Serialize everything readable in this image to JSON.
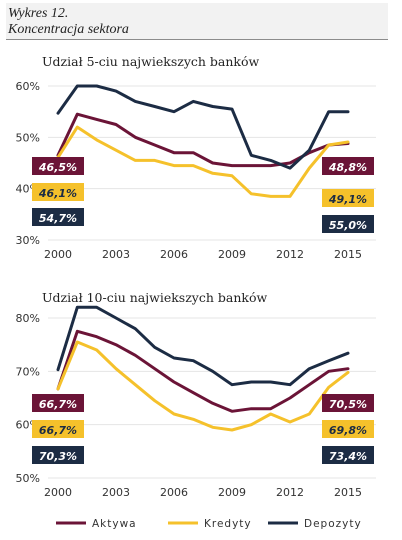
{
  "header": {
    "line1": "Wykres 12.",
    "line2": "Koncentracja sektora"
  },
  "colors": {
    "aktywa": "#6b1437",
    "kredyty": "#f5c12b",
    "depozyty": "#1c2c44"
  },
  "legend": [
    {
      "key": "aktywa",
      "label": "Aktywa"
    },
    {
      "key": "kredyty",
      "label": "Kredyty"
    },
    {
      "key": "depozyty",
      "label": "Depozyty"
    }
  ],
  "chart_data": [
    {
      "type": "line",
      "title": "Udział 5-ciu najwiekszych banków",
      "x": [
        2000,
        2001,
        2002,
        2003,
        2004,
        2005,
        2006,
        2007,
        2008,
        2009,
        2010,
        2011,
        2012,
        2013,
        2014,
        2015
      ],
      "x_ticks": [
        "2000",
        "2003",
        "2006",
        "2009",
        "2012",
        "2015"
      ],
      "y_ticks": [
        "30%",
        "40%",
        "50%",
        "60%"
      ],
      "ylim": [
        30,
        62
      ],
      "series": [
        {
          "key": "aktywa",
          "name": "Aktywa",
          "values": [
            46.5,
            54.5,
            53.5,
            52.5,
            50.0,
            48.5,
            47.0,
            47.0,
            45.0,
            44.5,
            44.5,
            44.5,
            45.0,
            47.0,
            48.5,
            48.8
          ]
        },
        {
          "key": "kredyty",
          "name": "Kredyty",
          "values": [
            46.1,
            52.0,
            49.5,
            47.5,
            45.5,
            45.5,
            44.5,
            44.5,
            43.0,
            42.5,
            39.0,
            38.5,
            38.5,
            44.0,
            48.5,
            49.1
          ]
        },
        {
          "key": "depozyty",
          "name": "Depozyty",
          "values": [
            54.7,
            60.0,
            60.0,
            59.0,
            57.0,
            56.0,
            55.0,
            57.0,
            56.0,
            55.5,
            46.5,
            45.5,
            44.0,
            47.5,
            55.0,
            55.0
          ]
        }
      ],
      "labels_left": [
        {
          "key": "aktywa",
          "text": "46,5%"
        },
        {
          "key": "kredyty",
          "text": "46,1%"
        },
        {
          "key": "depozyty",
          "text": "54,7%"
        }
      ],
      "labels_right": [
        {
          "key": "aktywa",
          "text": "48,8%"
        },
        {
          "key": "kredyty",
          "text": "49,1%"
        },
        {
          "key": "depozyty",
          "text": "55,0%"
        }
      ]
    },
    {
      "type": "line",
      "title": "Udział 10-ciu najwiekszych banków",
      "x": [
        2000,
        2001,
        2002,
        2003,
        2004,
        2005,
        2006,
        2007,
        2008,
        2009,
        2010,
        2011,
        2012,
        2013,
        2014,
        2015
      ],
      "x_ticks": [
        "2000",
        "2003",
        "2006",
        "2009",
        "2012",
        "2015"
      ],
      "y_ticks": [
        "50%",
        "60%",
        "70%",
        "80%"
      ],
      "ylim": [
        50,
        83
      ],
      "series": [
        {
          "key": "aktywa",
          "name": "Aktywa",
          "values": [
            66.7,
            77.5,
            76.5,
            75.0,
            73.0,
            70.5,
            68.0,
            66.0,
            64.0,
            62.5,
            63.0,
            63.0,
            65.0,
            67.5,
            70.0,
            70.5
          ]
        },
        {
          "key": "kredyty",
          "name": "Kredyty",
          "values": [
            66.7,
            75.5,
            74.0,
            70.5,
            67.5,
            64.5,
            62.0,
            61.0,
            59.5,
            59.0,
            60.0,
            62.0,
            60.5,
            62.0,
            67.0,
            69.8
          ]
        },
        {
          "key": "depozyty",
          "name": "Depozyty",
          "values": [
            70.3,
            82.0,
            82.0,
            80.0,
            78.0,
            74.5,
            72.5,
            72.0,
            70.0,
            67.5,
            68.0,
            68.0,
            67.5,
            70.5,
            72.0,
            73.4
          ]
        }
      ],
      "labels_left": [
        {
          "key": "aktywa",
          "text": "66,7%"
        },
        {
          "key": "kredyty",
          "text": "66,7%"
        },
        {
          "key": "depozyty",
          "text": "70,3%"
        }
      ],
      "labels_right": [
        {
          "key": "aktywa",
          "text": "70,5%"
        },
        {
          "key": "kredyty",
          "text": "69,8%"
        },
        {
          "key": "depozyty",
          "text": "73,4%"
        }
      ]
    }
  ]
}
